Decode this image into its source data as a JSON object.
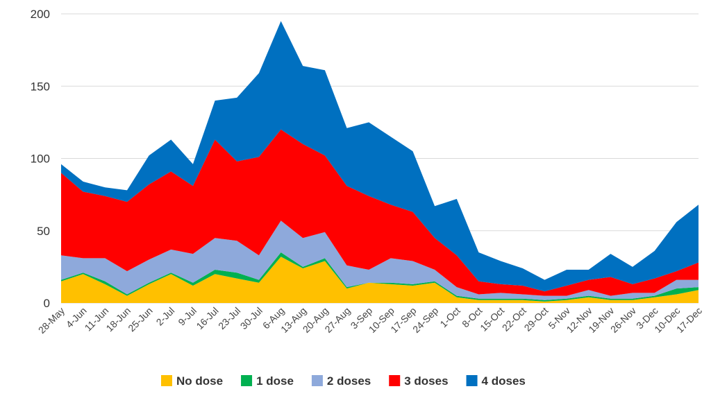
{
  "chart_data": {
    "type": "area",
    "stacked": true,
    "categories": [
      "28-May",
      "4-Jun",
      "11-Jun",
      "18-Jun",
      "25-Jun",
      "2-Jul",
      "9-Jul",
      "16-Jul",
      "23-Jul",
      "30-Jul",
      "6-Aug",
      "13-Aug",
      "20-Aug",
      "27-Aug",
      "3-Sep",
      "10-Sep",
      "17-Sep",
      "24-Sep",
      "1-Oct",
      "8-Oct",
      "15-Oct",
      "22-Oct",
      "29-Oct",
      "5-Nov",
      "12-Nov",
      "19-Nov",
      "26-Nov",
      "3-Dec",
      "10-Dec",
      "17-Dec"
    ],
    "series": [
      {
        "name": "No dose",
        "color": "#FFC000",
        "values": [
          15,
          20,
          13,
          5,
          13,
          20,
          12,
          20,
          17,
          14,
          32,
          24,
          29,
          10,
          14,
          13,
          12,
          14,
          4,
          2,
          2,
          2,
          1,
          2,
          4,
          2,
          2,
          4,
          6,
          9
        ]
      },
      {
        "name": "1 dose",
        "color": "#00B050",
        "values": [
          1,
          1,
          2,
          1,
          1,
          1,
          2,
          3,
          4,
          2,
          3,
          1,
          2,
          1,
          0,
          1,
          1,
          1,
          1,
          1,
          1,
          1,
          1,
          1,
          1,
          1,
          1,
          1,
          4,
          2
        ]
      },
      {
        "name": "2 doses",
        "color": "#8EA9DB",
        "values": [
          17,
          10,
          16,
          16,
          16,
          16,
          20,
          22,
          22,
          17,
          22,
          20,
          18,
          15,
          9,
          17,
          16,
          8,
          6,
          3,
          4,
          3,
          3,
          2,
          4,
          2,
          4,
          2,
          6,
          5
        ]
      },
      {
        "name": "3 doses",
        "color": "#FF0000",
        "values": [
          57,
          46,
          43,
          48,
          52,
          54,
          47,
          68,
          55,
          68,
          63,
          65,
          53,
          55,
          51,
          37,
          34,
          22,
          22,
          9,
          6,
          6,
          3,
          7,
          7,
          13,
          6,
          10,
          6,
          12
        ]
      },
      {
        "name": "4 doses",
        "color": "#0070C0",
        "values": [
          6,
          7,
          6,
          8,
          20,
          22,
          15,
          27,
          44,
          58,
          75,
          54,
          59,
          40,
          51,
          47,
          42,
          22,
          39,
          20,
          16,
          12,
          8,
          11,
          7,
          16,
          12,
          19,
          34,
          40
        ]
      }
    ],
    "xlabel": "",
    "ylabel": "",
    "ylim": [
      0,
      200
    ],
    "yticks": [
      "0",
      "50",
      "100",
      "150",
      "200"
    ],
    "grid": true,
    "legend_position": "bottom"
  }
}
